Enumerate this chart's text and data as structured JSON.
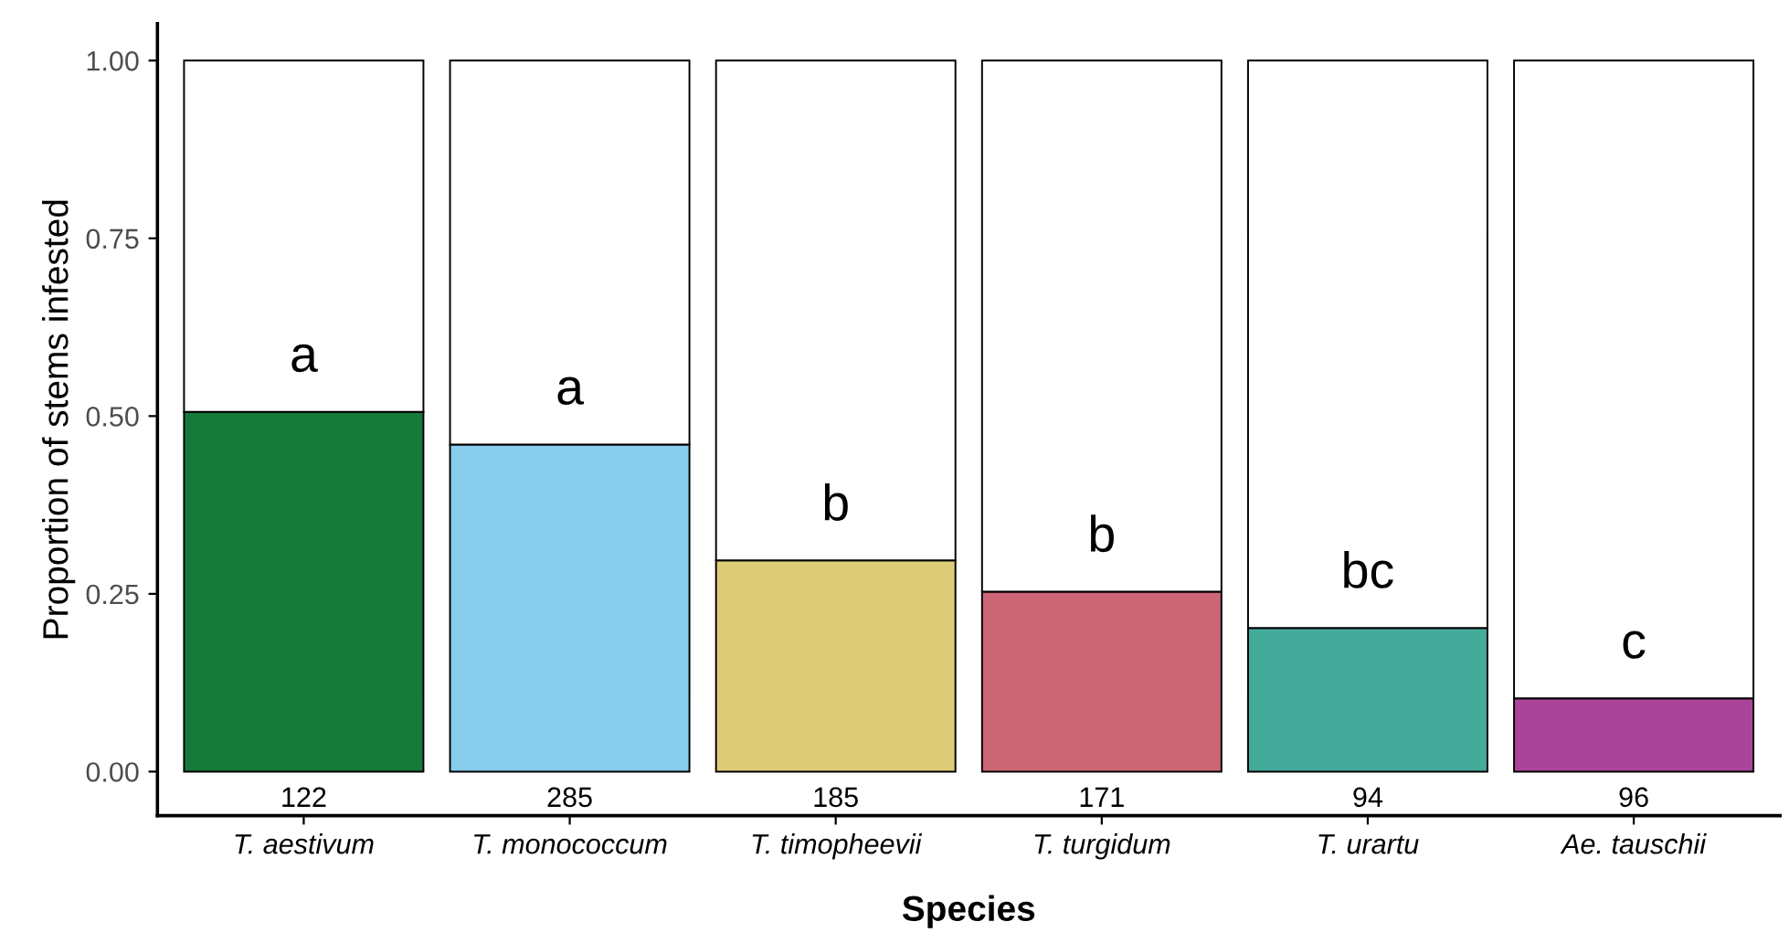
{
  "chart_data": {
    "type": "bar",
    "stacked": true,
    "xlabel": "Species",
    "ylabel": "Proportion of stems infested",
    "categories": [
      "T. aestivum",
      "T. monococcum",
      "T. timopheevii",
      "T. turgidum",
      "T. urartu",
      "Ae. tauschii"
    ],
    "series": [
      {
        "colors": [
          "#15793a",
          "#88ccee",
          "#ddcc77",
          "#cc6677",
          "#44aa99",
          "#aa4499"
        ],
        "values": [
          0.506,
          0.46,
          0.297,
          0.253,
          0.202,
          0.103
        ]
      },
      {
        "color": "#ffffff",
        "values": [
          0.494,
          0.54,
          0.703,
          0.747,
          0.798,
          0.897
        ]
      }
    ],
    "ylim": [
      -0.062,
      1.052
    ],
    "yticks": [
      {
        "value": 0,
        "label": "0.00"
      },
      {
        "value": 0.25,
        "label": "0.25"
      },
      {
        "value": 0.5,
        "label": "0.50"
      },
      {
        "value": 0.75,
        "label": "0.75"
      },
      {
        "value": 1,
        "label": "1.00"
      }
    ],
    "grid": false,
    "annotations": [
      {
        "text": "a",
        "x": "T. aestivum",
        "y": 0.506
      },
      {
        "text": "a",
        "x": "T. monococcum",
        "y": 0.46
      },
      {
        "text": "b",
        "x": "T. timopheevii",
        "y": 0.297
      },
      {
        "text": "b",
        "x": "T. turgidum",
        "y": 0.253
      },
      {
        "text": "bc",
        "x": "T. urartu",
        "y": 0.202
      },
      {
        "text": "c",
        "x": "Ae. tauschii",
        "y": 0.103
      },
      {
        "text": "122",
        "x": "T. aestivum",
        "y": 0
      },
      {
        "text": "285",
        "x": "T. monococcum",
        "y": 0
      },
      {
        "text": "185",
        "x": "T. timopheevii",
        "y": 0
      },
      {
        "text": "171",
        "x": "T. turgidum",
        "y": 0
      },
      {
        "text": "94",
        "x": "T. urartu",
        "y": 0
      },
      {
        "text": "96",
        "x": "Ae. tauschii",
        "y": 0
      }
    ]
  }
}
